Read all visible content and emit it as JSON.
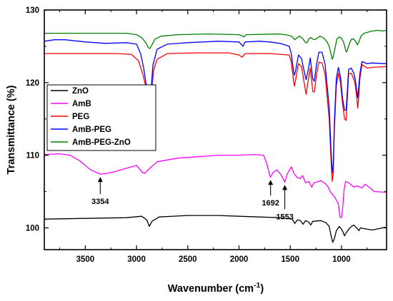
{
  "chart_data": {
    "type": "line",
    "xlabel": "Wavenumber (cm",
    "xlabel_sup": "-1",
    "xlabel_close": ")",
    "ylabel": "Transmittance (%)",
    "xlim": [
      3900,
      560
    ],
    "ylim": [
      97,
      130
    ],
    "x_reversed": true,
    "xticks": [
      3500,
      3000,
      2500,
      2000,
      1500,
      1000
    ],
    "xtick_labels": [
      "3500",
      "3000",
      "2500",
      "2000",
      "1500",
      "1000"
    ],
    "yticks": [
      100,
      110,
      120,
      130
    ],
    "ytick_labels": [
      "100",
      "110",
      "120",
      "130"
    ],
    "grid": false,
    "legend_position": "center-left",
    "series": [
      {
        "name": "ZnO",
        "color": "#000000",
        "points": [
          [
            3900,
            101.2
          ],
          [
            3500,
            101.3
          ],
          [
            3100,
            101.4
          ],
          [
            2950,
            101.6
          ],
          [
            2900,
            101.1
          ],
          [
            2875,
            100.2
          ],
          [
            2850,
            100.9
          ],
          [
            2780,
            101.5
          ],
          [
            2500,
            101.7
          ],
          [
            2200,
            101.7
          ],
          [
            2000,
            101.6
          ],
          [
            1800,
            101.5
          ],
          [
            1600,
            101.4
          ],
          [
            1480,
            101.2
          ],
          [
            1455,
            100.6
          ],
          [
            1430,
            101.1
          ],
          [
            1400,
            101.0
          ],
          [
            1375,
            100.5
          ],
          [
            1350,
            101.0
          ],
          [
            1320,
            100.8
          ],
          [
            1300,
            100.4
          ],
          [
            1280,
            100.9
          ],
          [
            1200,
            101.0
          ],
          [
            1150,
            100.7
          ],
          [
            1120,
            100.2
          ],
          [
            1100,
            98.8
          ],
          [
            1085,
            98.0
          ],
          [
            1070,
            98.5
          ],
          [
            1050,
            99.6
          ],
          [
            1020,
            100.2
          ],
          [
            990,
            99.6
          ],
          [
            970,
            98.9
          ],
          [
            955,
            99.3
          ],
          [
            920,
            100.0
          ],
          [
            880,
            100.4
          ],
          [
            845,
            99.9
          ],
          [
            830,
            99.6
          ],
          [
            815,
            100.0
          ],
          [
            780,
            99.9
          ],
          [
            700,
            99.7
          ],
          [
            600,
            100.0
          ],
          [
            560,
            100.1
          ]
        ]
      },
      {
        "name": "AmB",
        "color": "#ff00ff",
        "points": [
          [
            3900,
            110.1
          ],
          [
            3750,
            110.2
          ],
          [
            3650,
            110.0
          ],
          [
            3550,
            109.2
          ],
          [
            3450,
            108.0
          ],
          [
            3354,
            107.4
          ],
          [
            3250,
            107.6
          ],
          [
            3100,
            108.2
          ],
          [
            3000,
            108.6
          ],
          [
            2940,
            107.6
          ],
          [
            2920,
            107.5
          ],
          [
            2880,
            108.1
          ],
          [
            2800,
            109.1
          ],
          [
            2600,
            109.6
          ],
          [
            2400,
            109.8
          ],
          [
            2200,
            110.0
          ],
          [
            2000,
            110.0
          ],
          [
            1850,
            110.1
          ],
          [
            1760,
            110.0
          ],
          [
            1730,
            108.9
          ],
          [
            1700,
            107.2
          ],
          [
            1692,
            107.0
          ],
          [
            1670,
            107.6
          ],
          [
            1630,
            108.0
          ],
          [
            1590,
            107.3
          ],
          [
            1553,
            106.3
          ],
          [
            1530,
            107.4
          ],
          [
            1490,
            108.4
          ],
          [
            1460,
            107.4
          ],
          [
            1430,
            106.9
          ],
          [
            1400,
            106.8
          ],
          [
            1380,
            107.2
          ],
          [
            1350,
            106.2
          ],
          [
            1320,
            106.4
          ],
          [
            1290,
            105.6
          ],
          [
            1270,
            106.2
          ],
          [
            1200,
            106.5
          ],
          [
            1150,
            106.0
          ],
          [
            1130,
            105.6
          ],
          [
            1110,
            105.0
          ],
          [
            1090,
            104.6
          ],
          [
            1070,
            104.3
          ],
          [
            1050,
            103.8
          ],
          [
            1030,
            103.3
          ],
          [
            1015,
            101.5
          ],
          [
            1000,
            101.4
          ],
          [
            990,
            102.5
          ],
          [
            975,
            105.2
          ],
          [
            960,
            106.4
          ],
          [
            930,
            106.2
          ],
          [
            880,
            105.6
          ],
          [
            850,
            105.8
          ],
          [
            800,
            105.5
          ],
          [
            770,
            106.0
          ],
          [
            720,
            105.5
          ],
          [
            680,
            105.0
          ],
          [
            560,
            104.9
          ]
        ]
      },
      {
        "name": "PEG",
        "color": "#ff0000",
        "points": [
          [
            3900,
            124.0
          ],
          [
            3500,
            124.0
          ],
          [
            3200,
            124.0
          ],
          [
            3050,
            123.9
          ],
          [
            2980,
            123.0
          ],
          [
            2940,
            121.2
          ],
          [
            2910,
            119.5
          ],
          [
            2890,
            118.0
          ],
          [
            2880,
            117.2
          ],
          [
            2870,
            117.0
          ],
          [
            2855,
            118.0
          ],
          [
            2835,
            121.6
          ],
          [
            2800,
            123.2
          ],
          [
            2700,
            124.0
          ],
          [
            2400,
            124.1
          ],
          [
            2100,
            124.1
          ],
          [
            2000,
            123.8
          ],
          [
            1970,
            123.5
          ],
          [
            1940,
            124.0
          ],
          [
            1700,
            124.0
          ],
          [
            1510,
            123.8
          ],
          [
            1490,
            122.9
          ],
          [
            1470,
            120.5
          ],
          [
            1460,
            119.5
          ],
          [
            1450,
            120.2
          ],
          [
            1420,
            122.6
          ],
          [
            1390,
            122.2
          ],
          [
            1360,
            119.6
          ],
          [
            1345,
            118.4
          ],
          [
            1330,
            119.8
          ],
          [
            1305,
            122.0
          ],
          [
            1280,
            118.8
          ],
          [
            1265,
            118.7
          ],
          [
            1245,
            121.0
          ],
          [
            1220,
            122.8
          ],
          [
            1190,
            122.7
          ],
          [
            1160,
            121.2
          ],
          [
            1140,
            118.0
          ],
          [
            1120,
            115.0
          ],
          [
            1100,
            108.6
          ],
          [
            1090,
            106.4
          ],
          [
            1080,
            107.6
          ],
          [
            1070,
            113.5
          ],
          [
            1050,
            119.6
          ],
          [
            1030,
            121.3
          ],
          [
            1010,
            120.0
          ],
          [
            990,
            117.2
          ],
          [
            970,
            115.0
          ],
          [
            955,
            114.8
          ],
          [
            945,
            117.4
          ],
          [
            930,
            121.2
          ],
          [
            905,
            121.3
          ],
          [
            880,
            120.5
          ],
          [
            865,
            119.6
          ],
          [
            850,
            117.8
          ],
          [
            842,
            116.5
          ],
          [
            834,
            117.6
          ],
          [
            820,
            120.6
          ],
          [
            800,
            122.5
          ],
          [
            750,
            122.0
          ],
          [
            700,
            122.1
          ],
          [
            560,
            122.2
          ]
        ]
      },
      {
        "name": "AmB-PEG",
        "color": "#0000ff",
        "points": [
          [
            3900,
            125.7
          ],
          [
            3800,
            125.9
          ],
          [
            3700,
            125.9
          ],
          [
            3500,
            125.6
          ],
          [
            3300,
            125.4
          ],
          [
            3100,
            125.5
          ],
          [
            3000,
            125.3
          ],
          [
            2960,
            124.0
          ],
          [
            2930,
            122.0
          ],
          [
            2900,
            119.2
          ],
          [
            2885,
            118.0
          ],
          [
            2875,
            117.8
          ],
          [
            2860,
            118.6
          ],
          [
            2840,
            122.4
          ],
          [
            2800,
            124.6
          ],
          [
            2700,
            125.3
          ],
          [
            2500,
            125.5
          ],
          [
            2200,
            125.7
          ],
          [
            2000,
            125.6
          ],
          [
            1960,
            125.0
          ],
          [
            1940,
            125.6
          ],
          [
            1800,
            125.7
          ],
          [
            1700,
            125.6
          ],
          [
            1600,
            125.4
          ],
          [
            1510,
            125.0
          ],
          [
            1490,
            124.0
          ],
          [
            1470,
            121.8
          ],
          [
            1460,
            121.0
          ],
          [
            1450,
            121.5
          ],
          [
            1420,
            123.8
          ],
          [
            1390,
            123.3
          ],
          [
            1360,
            121.3
          ],
          [
            1345,
            120.4
          ],
          [
            1330,
            121.4
          ],
          [
            1305,
            123.4
          ],
          [
            1280,
            120.5
          ],
          [
            1265,
            120.2
          ],
          [
            1245,
            122.4
          ],
          [
            1220,
            124.2
          ],
          [
            1190,
            124.2
          ],
          [
            1160,
            122.5
          ],
          [
            1140,
            119.6
          ],
          [
            1120,
            116.6
          ],
          [
            1100,
            110.0
          ],
          [
            1090,
            107.6
          ],
          [
            1080,
            108.6
          ],
          [
            1070,
            114.4
          ],
          [
            1050,
            120.6
          ],
          [
            1030,
            122.1
          ],
          [
            1010,
            120.8
          ],
          [
            990,
            117.9
          ],
          [
            970,
            116.2
          ],
          [
            955,
            116.2
          ],
          [
            945,
            118.4
          ],
          [
            930,
            121.8
          ],
          [
            905,
            122.0
          ],
          [
            880,
            121.3
          ],
          [
            865,
            120.4
          ],
          [
            850,
            118.8
          ],
          [
            842,
            117.9
          ],
          [
            834,
            119.0
          ],
          [
            820,
            121.3
          ],
          [
            800,
            122.9
          ],
          [
            750,
            122.6
          ],
          [
            700,
            122.7
          ],
          [
            560,
            122.6
          ]
        ]
      },
      {
        "name": "AmB-PEG-ZnO",
        "color": "#008000",
        "points": [
          [
            3900,
            126.8
          ],
          [
            3600,
            126.8
          ],
          [
            3300,
            126.8
          ],
          [
            3100,
            126.8
          ],
          [
            3000,
            126.6
          ],
          [
            2950,
            126.2
          ],
          [
            2910,
            125.5
          ],
          [
            2885,
            124.8
          ],
          [
            2870,
            124.7
          ],
          [
            2850,
            125.2
          ],
          [
            2820,
            126.0
          ],
          [
            2760,
            126.4
          ],
          [
            2600,
            126.6
          ],
          [
            2300,
            126.7
          ],
          [
            2000,
            126.6
          ],
          [
            1950,
            126.3
          ],
          [
            1930,
            126.6
          ],
          [
            1600,
            126.7
          ],
          [
            1510,
            126.5
          ],
          [
            1480,
            126.3
          ],
          [
            1455,
            125.9
          ],
          [
            1440,
            126.1
          ],
          [
            1410,
            126.4
          ],
          [
            1380,
            126.1
          ],
          [
            1350,
            125.5
          ],
          [
            1335,
            125.5
          ],
          [
            1320,
            126.0
          ],
          [
            1300,
            126.2
          ],
          [
            1280,
            126.0
          ],
          [
            1260,
            125.9
          ],
          [
            1240,
            126.1
          ],
          [
            1210,
            126.4
          ],
          [
            1180,
            126.2
          ],
          [
            1160,
            125.9
          ],
          [
            1140,
            125.6
          ],
          [
            1120,
            125.0
          ],
          [
            1110,
            124.4
          ],
          [
            1100,
            123.8
          ],
          [
            1090,
            123.2
          ],
          [
            1080,
            123.6
          ],
          [
            1065,
            124.6
          ],
          [
            1045,
            126.0
          ],
          [
            1020,
            126.3
          ],
          [
            1000,
            126.1
          ],
          [
            980,
            125.6
          ],
          [
            960,
            124.5
          ],
          [
            950,
            124.2
          ],
          [
            940,
            124.6
          ],
          [
            920,
            125.5
          ],
          [
            900,
            126.0
          ],
          [
            880,
            126.0
          ],
          [
            860,
            125.6
          ],
          [
            845,
            125.2
          ],
          [
            830,
            125.6
          ],
          [
            810,
            126.4
          ],
          [
            780,
            126.8
          ],
          [
            700,
            127.1
          ],
          [
            640,
            127.2
          ],
          [
            600,
            127.1
          ],
          [
            560,
            127.2
          ]
        ]
      }
    ],
    "annotations": [
      {
        "label": "3354",
        "x": 3354,
        "y": 107.4
      },
      {
        "label": "1692",
        "x": 1692,
        "y": 107.0
      },
      {
        "label": "1553",
        "x": 1553,
        "y": 106.3
      }
    ]
  }
}
